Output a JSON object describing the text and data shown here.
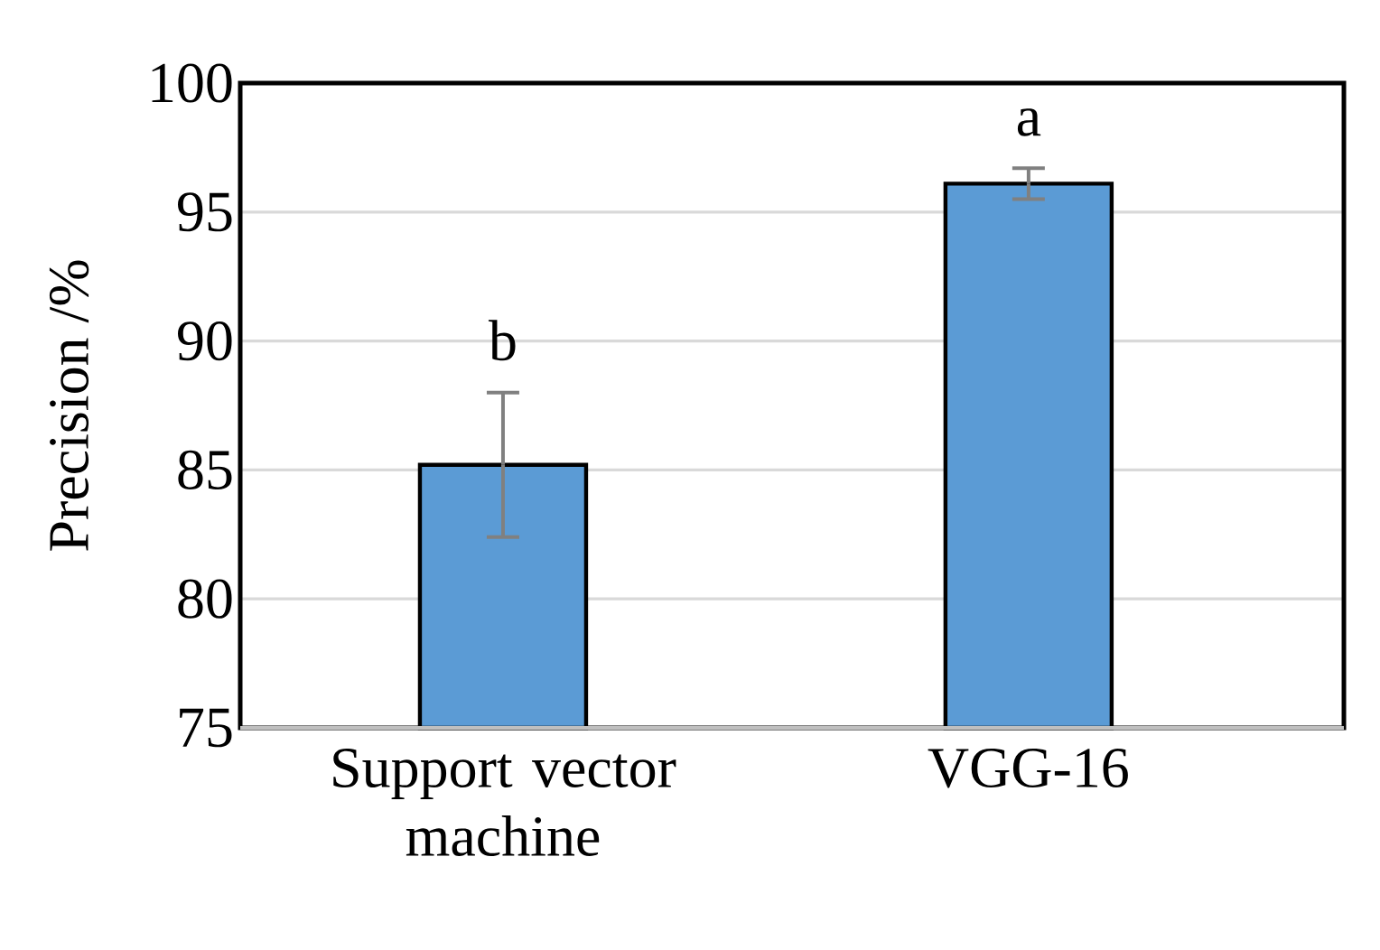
{
  "chart_data": {
    "type": "bar",
    "ylabel": "Precision /%",
    "categories": [
      "Support vector machine",
      "VGG-16"
    ],
    "values": [
      85.2,
      96.1
    ],
    "errors": [
      2.8,
      0.6
    ],
    "color": "#5b9bd5",
    "ylim": [
      75,
      100
    ],
    "yticks": [
      75,
      80,
      85,
      90,
      95,
      100
    ],
    "grid": "y",
    "annotations": [
      "b",
      "a"
    ]
  }
}
